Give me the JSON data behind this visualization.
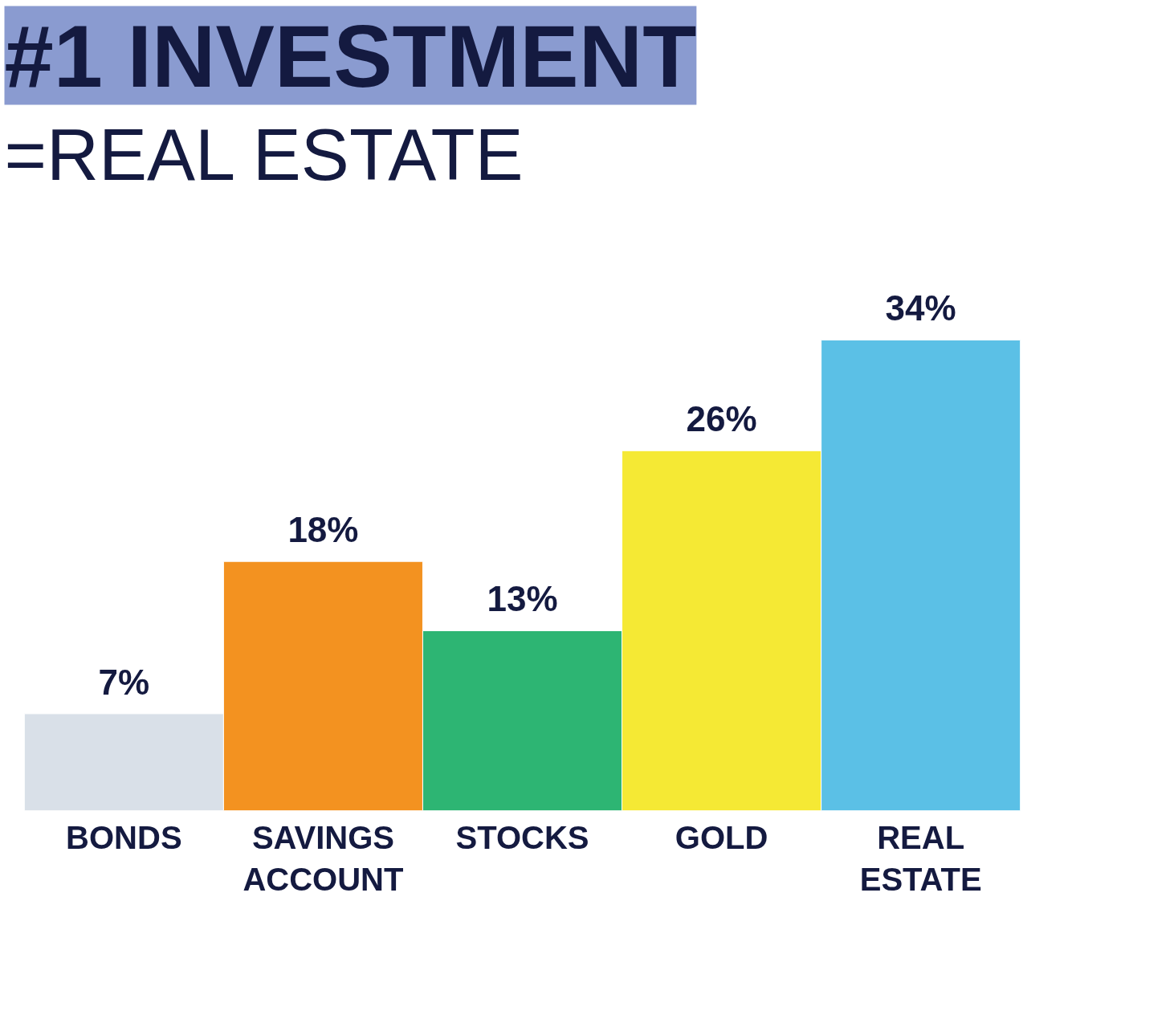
{
  "chart_data": {
    "type": "bar",
    "title": "#1 INVESTMENT",
    "subtitle": "=REAL ESTATE",
    "categories": [
      "BONDS",
      "SAVINGS ACCOUNT",
      "STOCKS",
      "GOLD",
      "REAL ESTATE"
    ],
    "values": [
      7,
      18,
      13,
      26,
      34
    ],
    "colors": [
      "#d9e0e8",
      "#f39220",
      "#2db573",
      "#f5e934",
      "#5bc0e6"
    ],
    "value_labels": [
      "7%",
      "18%",
      "13%",
      "26%",
      "34%"
    ],
    "tick_labels": "x",
    "grid": false
  }
}
